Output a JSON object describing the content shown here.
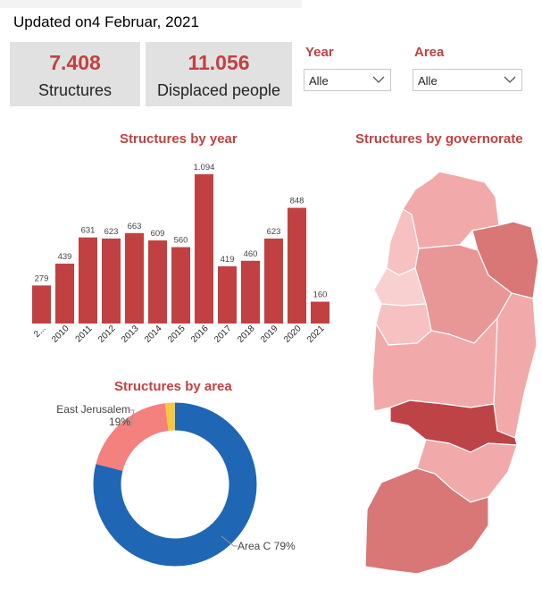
{
  "header": {
    "updated_label": "Updated on",
    "updated_date": "4 Februar, 2021"
  },
  "cards": [
    {
      "value": "7.408",
      "label": "Structures"
    },
    {
      "value": "11.056",
      "label": "Displaced people"
    }
  ],
  "filters": [
    {
      "label": "Year",
      "value": "Alle",
      "icon": "chevron-down-icon"
    },
    {
      "label": "Area",
      "value": "Alle",
      "icon": "chevron-down-icon"
    }
  ],
  "colors": {
    "accent": "#c14142",
    "bar": "#c14142",
    "area_c": "#1f66b5",
    "east_jerusalem": "#f4817e",
    "other_area": "#f5c842",
    "card_bg": "#e1e1e1"
  },
  "chart_data": [
    {
      "type": "bar",
      "title": "Structures by year",
      "categories": [
        "2...",
        "2010",
        "2011",
        "2012",
        "2013",
        "2014",
        "2015",
        "2016",
        "2017",
        "2018",
        "2019",
        "2020",
        "2021"
      ],
      "values": [
        279,
        439,
        631,
        623,
        663,
        609,
        560,
        1094,
        419,
        460,
        623,
        848,
        160
      ],
      "value_labels": [
        "279",
        "439",
        "631",
        "623",
        "663",
        "609",
        "560",
        "1.094",
        "419",
        "460",
        "623",
        "848",
        "160"
      ],
      "ylim": [
        0,
        1094
      ],
      "grid": false
    },
    {
      "type": "pie",
      "title": "Structures by area",
      "donut": true,
      "slices": [
        {
          "name": "Area C",
          "value": 79,
          "label": "Area C 79%"
        },
        {
          "name": "East Jerusalem",
          "value": 19,
          "label": "East Jerusalem",
          "pct_label": "19%"
        },
        {
          "name": "other",
          "value": 2
        }
      ]
    }
  ],
  "map": {
    "title": "Structures by governorate",
    "shades": [
      "#f7c1c1",
      "#f2a9a9",
      "#e89696",
      "#d97676",
      "#bd4346",
      "#f8d0d0"
    ]
  }
}
